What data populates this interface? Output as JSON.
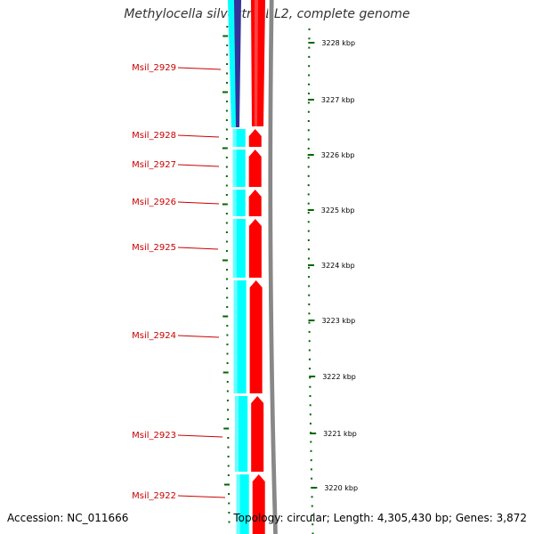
{
  "title": "Methylocella silvestris BL2, complete genome",
  "footer": {
    "accession": "Accession: NC_011666",
    "summary": "Topology: circular; Length: 4,305,430 bp; Genes: 3,872"
  },
  "colors": {
    "forward_strand": "#ff0000",
    "reverse_strand": "#00ffff",
    "selected_gene": "#333399",
    "backbone": "#888888",
    "ticks": "#006600",
    "label": "#cc0000"
  },
  "kbp_labels": [
    "3228 kbp",
    "3227 kbp",
    "3226 kbp",
    "3225 kbp",
    "3224 kbp",
    "3223 kbp",
    "3222 kbp",
    "3221 kbp",
    "3220 kbp"
  ],
  "gene_labels": [
    "Msil_2929",
    "Msil_2928",
    "Msil_2927",
    "Msil_2926",
    "Msil_2925",
    "Msil_2924",
    "Msil_2923",
    "Msil_2922"
  ]
}
